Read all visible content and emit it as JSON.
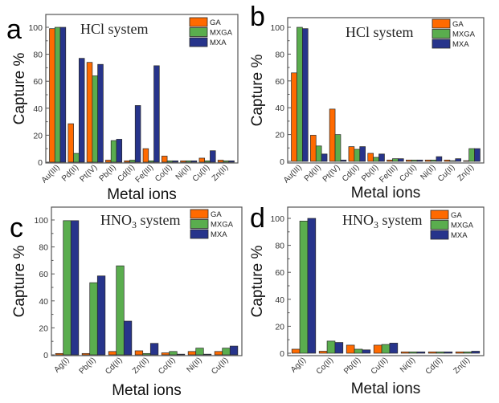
{
  "figure": {
    "series_colors": {
      "GA": "#ff6a00",
      "MXGA": "#5aad4e",
      "MXA": "#27348b"
    }
  },
  "chart_data": [
    {
      "panel": "a",
      "type": "bar",
      "title": "HCl system",
      "title_main": "HCl system",
      "title_sub": "",
      "title_after": "",
      "xlabel": "Metal ions",
      "ylabel": "Capture %",
      "ylim": [
        0,
        110
      ],
      "yticks": [
        0,
        20,
        40,
        60,
        80,
        100
      ],
      "grid": false,
      "legend": "top-right",
      "categories": [
        "Au(III)",
        "Pd(II)",
        "Pt(IV)",
        "Pb(II)",
        "Cd(II)",
        "Fe(III)",
        "Co(II)",
        "Ni(II)",
        "Cu(II)",
        "Zn(II)"
      ],
      "series": [
        {
          "name": "GA",
          "values": [
            99,
            28.5,
            74,
            1.5,
            1,
            10,
            4.5,
            1,
            3,
            1.5
          ]
        },
        {
          "name": "MXGA",
          "values": [
            100,
            6.5,
            64,
            16,
            1.5,
            1,
            1,
            1,
            1,
            1
          ]
        },
        {
          "name": "MXA",
          "values": [
            100,
            77,
            72.5,
            17,
            42,
            71.5,
            1,
            1,
            8.5,
            1
          ]
        }
      ]
    },
    {
      "panel": "b",
      "type": "bar",
      "title": "HCl system",
      "title_main": "HCl system",
      "title_sub": "",
      "title_after": "",
      "xlabel": "Metal ions",
      "ylabel": "Capture %",
      "ylim": [
        0,
        108
      ],
      "yticks": [
        0,
        20,
        40,
        60,
        80,
        100
      ],
      "grid": false,
      "legend": "top-right",
      "categories": [
        "Au(III)",
        "Pd(II)",
        "Pt(IV)",
        "Cd(II)",
        "Pb(II)",
        "Fe(III)",
        "Co(II)",
        "Ni(II)",
        "Cu(II)",
        "Zn(II)"
      ],
      "series": [
        {
          "name": "GA",
          "values": [
            66,
            19.5,
            39,
            11,
            6,
            1,
            1,
            1,
            1,
            0.5
          ]
        },
        {
          "name": "MXGA",
          "values": [
            100,
            11.5,
            20,
            9,
            3,
            2,
            1,
            1,
            0.5,
            9.5
          ]
        },
        {
          "name": "MXA",
          "values": [
            99,
            5.5,
            1,
            11,
            5.5,
            2,
            1,
            3.5,
            2,
            9.5
          ]
        }
      ]
    },
    {
      "panel": "c",
      "type": "bar",
      "title": "HNO3 system",
      "title_main": "HNO",
      "title_sub": "3",
      "title_after": " system",
      "xlabel": "Metal ions",
      "ylabel": "Capture %",
      "ylim": [
        0,
        110
      ],
      "yticks": [
        0,
        20,
        40,
        60,
        80,
        100
      ],
      "grid": false,
      "legend": "top-right",
      "categories": [
        "Ag(I)",
        "Pb(II)",
        "Cd(II)",
        "Zn(II)",
        "Co(II)",
        "Ni(II)",
        "Cu(II)"
      ],
      "series": [
        {
          "name": "GA",
          "values": [
            1,
            1,
            2.5,
            3,
            1.5,
            2.5,
            2.5
          ]
        },
        {
          "name": "MXGA",
          "values": [
            99.5,
            53.5,
            66,
            1,
            2.5,
            5,
            5
          ]
        },
        {
          "name": "MXA",
          "values": [
            99.5,
            58.5,
            25,
            8.5,
            0.5,
            0.5,
            6.5
          ]
        }
      ]
    },
    {
      "panel": "d",
      "type": "bar",
      "title": "HNO3 system",
      "title_main": "HNO",
      "title_sub": "3",
      "title_after": " system",
      "xlabel": "Metal ions",
      "ylabel": "Capture %",
      "ylim": [
        0,
        110
      ],
      "yticks": [
        0,
        20,
        40,
        60,
        80,
        100
      ],
      "grid": false,
      "legend": "top-right",
      "categories": [
        "Ag(I)",
        "Co(II)",
        "Pb(II)",
        "Cu(II)",
        "Ni(II)",
        "Cd(II)",
        "Zn(II)"
      ],
      "series": [
        {
          "name": "GA",
          "values": [
            3,
            1.5,
            6,
            6,
            1,
            1,
            1
          ]
        },
        {
          "name": "MXGA",
          "values": [
            98,
            9,
            3,
            6.5,
            1,
            1,
            1
          ]
        },
        {
          "name": "MXA",
          "values": [
            100,
            8,
            2.5,
            7.5,
            1,
            1,
            1.5
          ]
        }
      ]
    }
  ]
}
